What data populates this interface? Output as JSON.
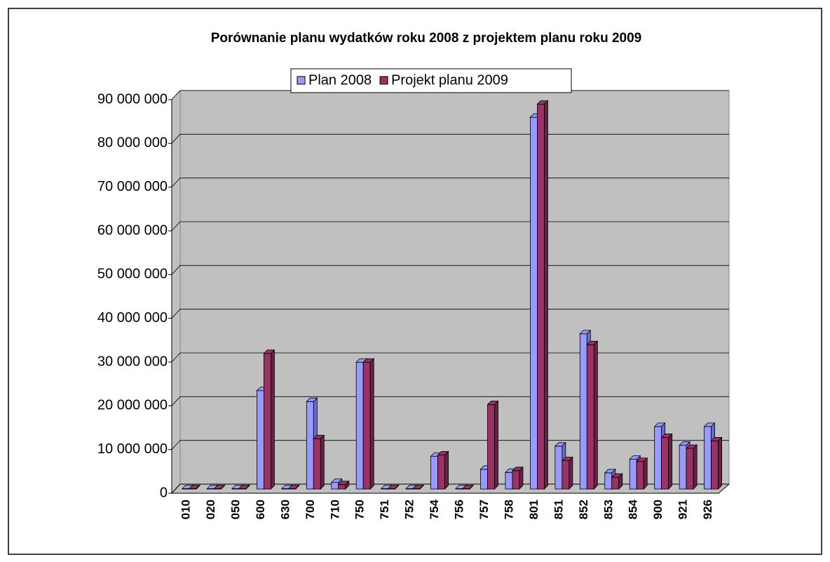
{
  "chart_data": {
    "type": "bar3d",
    "title": "Porównanie planu wydatków roku 2008 z projektem planu roku 2009",
    "categories": [
      "010",
      "020",
      "050",
      "600",
      "630",
      "700",
      "710",
      "750",
      "751",
      "752",
      "754",
      "756",
      "757",
      "758",
      "801",
      "851",
      "852",
      "853",
      "854",
      "900",
      "921",
      "926"
    ],
    "series": [
      {
        "name": "Plan 2008",
        "color": "#9999ff",
        "side": "#6b6bcc",
        "values": [
          100000,
          100000,
          100000,
          22500000,
          100000,
          20000000,
          1500000,
          29000000,
          100000,
          100000,
          7500000,
          100000,
          4500000,
          3800000,
          85000000,
          9800000,
          35500000,
          3700000,
          6800000,
          14300000,
          10000000,
          14300000
        ]
      },
      {
        "name": "Projekt planu 2009",
        "color": "#993366",
        "side": "#662244",
        "values": [
          100000,
          100000,
          100000,
          31000000,
          100000,
          11500000,
          1000000,
          29000000,
          100000,
          100000,
          7800000,
          100000,
          19300000,
          4200000,
          88000000,
          6500000,
          33000000,
          2700000,
          6300000,
          11800000,
          9300000,
          11000000
        ]
      }
    ],
    "ylim": [
      0,
      90000000
    ],
    "yticks": [
      0,
      {
        "value": 10000000,
        "label": "10 000 000"
      },
      {
        "value": 20000000,
        "label": "20 000 000"
      },
      {
        "value": 30000000,
        "label": "30 000 000"
      },
      {
        "value": 40000000,
        "label": "40 000 000"
      },
      {
        "value": 50000000,
        "label": "50 000 000"
      },
      {
        "value": 60000000,
        "label": "60 000 000"
      },
      {
        "value": 70000000,
        "label": "70 000 000"
      },
      {
        "value": 80000000,
        "label": "80 000 000"
      },
      {
        "value": 90000000,
        "label": "90 000 000"
      }
    ],
    "grid": true,
    "wall_color": "#c0c0c0",
    "legend": "top"
  }
}
